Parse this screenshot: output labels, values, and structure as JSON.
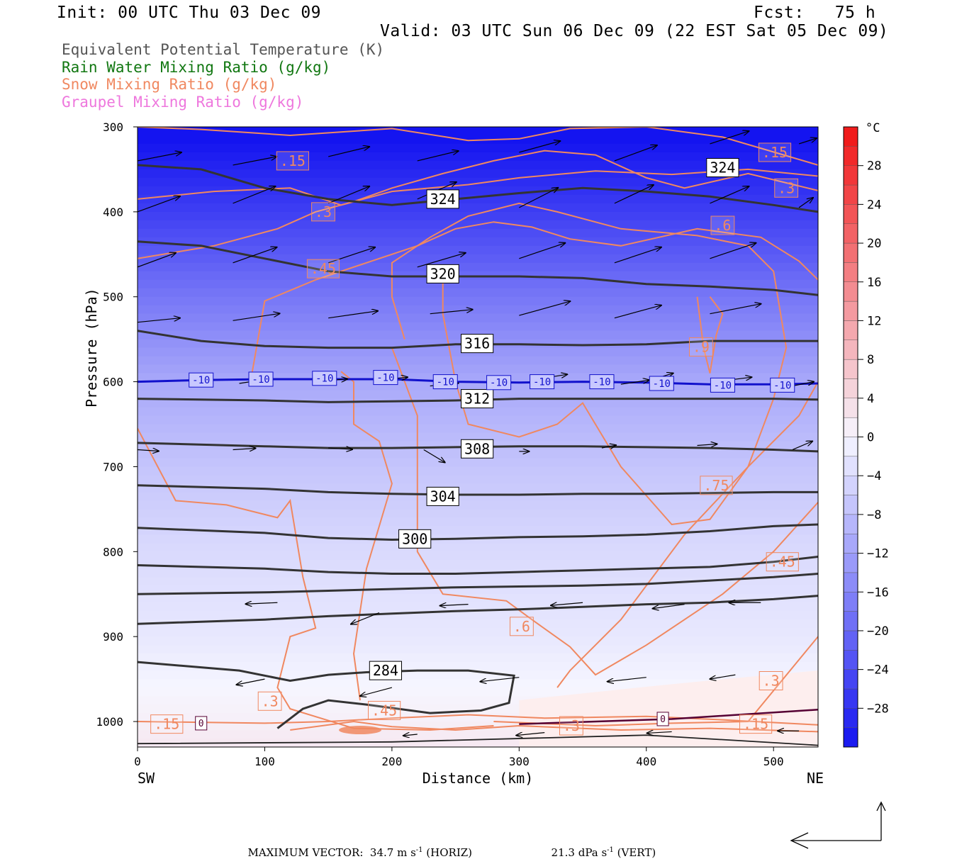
{
  "header": {
    "init": "Init: 00 UTC Thu 03 Dec 09",
    "fcst": "Fcst:   75 h",
    "valid": "Valid: 03 UTC Sun 06 Dec 09 (22 EST Sat 05 Dec 09)"
  },
  "legend": [
    {
      "text": "Equivalent Potential Temperature (K)",
      "color": "#555555"
    },
    {
      "text": "Rain Water Mixing Ratio (g/kg)",
      "color": "#117711"
    },
    {
      "text": "Snow Mixing Ratio (g/kg)",
      "color": "#f08860"
    },
    {
      "text": "Graupel Mixing Ratio (g/kg)",
      "color": "#ee77dd"
    }
  ],
  "footer": {
    "max_vector": "MAXIMUM VECTOR:  34.7 m s",
    "horiz_tail": " (HORIZ)",
    "vert": "21.3 dPa s",
    "vert_tail": " (VERT)",
    "exp": "-1"
  },
  "chart_data": {
    "type": "cross-section",
    "xlabel": "Distance (km)",
    "ylabel": "Pressure (hPa)",
    "xlim": [
      0,
      535
    ],
    "ylim": [
      1030,
      300
    ],
    "x_ticks": [
      0,
      100,
      200,
      300,
      400,
      500
    ],
    "y_ticks": [
      300,
      400,
      500,
      600,
      700,
      800,
      900,
      1000
    ],
    "x_end_labels": {
      "left": "SW",
      "right": "NE"
    },
    "colorbar": {
      "unit": "°C",
      "ticks": [
        28,
        24,
        20,
        16,
        12,
        8,
        4,
        0,
        -4,
        -8,
        -12,
        -16,
        -20,
        -24,
        -28
      ],
      "range": [
        -32,
        32
      ],
      "step": 2
    },
    "theta_e_contours": [
      {
        "value": 324,
        "label": "324",
        "points": [
          [
            0,
            345
          ],
          [
            50,
            350
          ],
          [
            100,
            372
          ],
          [
            150,
            385
          ],
          [
            200,
            392
          ],
          [
            250,
            385
          ],
          [
            300,
            378
          ],
          [
            350,
            372
          ],
          [
            400,
            376
          ],
          [
            450,
            382
          ],
          [
            500,
            392
          ],
          [
            535,
            400
          ]
        ]
      },
      {
        "value": 320,
        "label": "320",
        "points": [
          [
            0,
            435
          ],
          [
            50,
            440
          ],
          [
            100,
            455
          ],
          [
            150,
            470
          ],
          [
            200,
            476
          ],
          [
            250,
            476
          ],
          [
            300,
            476
          ],
          [
            350,
            478
          ],
          [
            400,
            485
          ],
          [
            450,
            488
          ],
          [
            500,
            492
          ],
          [
            535,
            498
          ]
        ]
      },
      {
        "value": 316,
        "label": "316",
        "points": [
          [
            0,
            540
          ],
          [
            50,
            552
          ],
          [
            100,
            558
          ],
          [
            150,
            560
          ],
          [
            200,
            560
          ],
          [
            250,
            556
          ],
          [
            300,
            556
          ],
          [
            350,
            557
          ],
          [
            400,
            556
          ],
          [
            450,
            552
          ],
          [
            500,
            552
          ],
          [
            535,
            552
          ]
        ]
      },
      {
        "value": 312,
        "label": "312",
        "points": [
          [
            0,
            620
          ],
          [
            100,
            622
          ],
          [
            150,
            624
          ],
          [
            200,
            623
          ],
          [
            250,
            622
          ],
          [
            300,
            620
          ],
          [
            350,
            620
          ],
          [
            400,
            620
          ],
          [
            450,
            620
          ],
          [
            500,
            620
          ],
          [
            535,
            621
          ]
        ]
      },
      {
        "value": 308,
        "label": "308",
        "points": [
          [
            0,
            672
          ],
          [
            100,
            676
          ],
          [
            150,
            678
          ],
          [
            200,
            678
          ],
          [
            250,
            677
          ],
          [
            300,
            676
          ],
          [
            350,
            676
          ],
          [
            400,
            677
          ],
          [
            450,
            678
          ],
          [
            500,
            680
          ],
          [
            535,
            682
          ]
        ]
      },
      {
        "value": 304,
        "label": "304",
        "points": [
          [
            0,
            722
          ],
          [
            100,
            726
          ],
          [
            150,
            730
          ],
          [
            200,
            732
          ],
          [
            250,
            733
          ],
          [
            300,
            733
          ],
          [
            350,
            732
          ],
          [
            400,
            732
          ],
          [
            450,
            731
          ],
          [
            500,
            730
          ],
          [
            535,
            730
          ]
        ]
      },
      {
        "value": 300,
        "label": "300",
        "points": [
          [
            0,
            772
          ],
          [
            100,
            778
          ],
          [
            150,
            784
          ],
          [
            200,
            786
          ],
          [
            250,
            785
          ],
          [
            300,
            783
          ],
          [
            350,
            782
          ],
          [
            400,
            780
          ],
          [
            450,
            776
          ],
          [
            500,
            770
          ],
          [
            535,
            768
          ]
        ]
      },
      {
        "value": 296,
        "label": "",
        "points": [
          [
            0,
            816
          ],
          [
            100,
            820
          ],
          [
            150,
            824
          ],
          [
            200,
            826
          ],
          [
            250,
            826
          ],
          [
            300,
            824
          ],
          [
            350,
            822
          ],
          [
            400,
            820
          ],
          [
            450,
            818
          ],
          [
            500,
            812
          ],
          [
            535,
            806
          ]
        ]
      },
      {
        "value": 292,
        "label": "",
        "points": [
          [
            0,
            850
          ],
          [
            100,
            848
          ],
          [
            150,
            846
          ],
          [
            200,
            844
          ],
          [
            250,
            842
          ],
          [
            300,
            841
          ],
          [
            350,
            840
          ],
          [
            400,
            838
          ],
          [
            450,
            834
          ],
          [
            500,
            830
          ],
          [
            535,
            826
          ]
        ]
      },
      {
        "value": 288,
        "label": "",
        "points": [
          [
            0,
            885
          ],
          [
            100,
            880
          ],
          [
            150,
            876
          ],
          [
            200,
            873
          ],
          [
            250,
            870
          ],
          [
            300,
            868
          ],
          [
            350,
            865
          ],
          [
            400,
            862
          ],
          [
            450,
            860
          ],
          [
            500,
            856
          ],
          [
            535,
            852
          ]
        ]
      },
      {
        "value": 284,
        "label": "284",
        "points": [
          [
            0,
            930
          ],
          [
            80,
            940
          ],
          [
            120,
            952
          ],
          [
            150,
            945
          ],
          [
            180,
            942
          ],
          [
            220,
            940
          ],
          [
            260,
            940
          ],
          [
            296,
            946
          ],
          [
            292,
            978
          ],
          [
            270,
            987
          ],
          [
            230,
            990
          ],
          [
            180,
            980
          ],
          [
            150,
            975
          ],
          [
            130,
            985
          ],
          [
            110,
            1008
          ]
        ]
      }
    ],
    "isotherm": {
      "value": -10,
      "label": "-10"
    },
    "snow_labels": [
      ".15",
      ".3",
      ".45",
      ".6",
      ".75",
      ".9"
    ],
    "rain_labels": [
      "0"
    ],
    "wind_vector_units": {
      "horizontal": "m s-1",
      "vertical": "dPa s-1"
    }
  }
}
